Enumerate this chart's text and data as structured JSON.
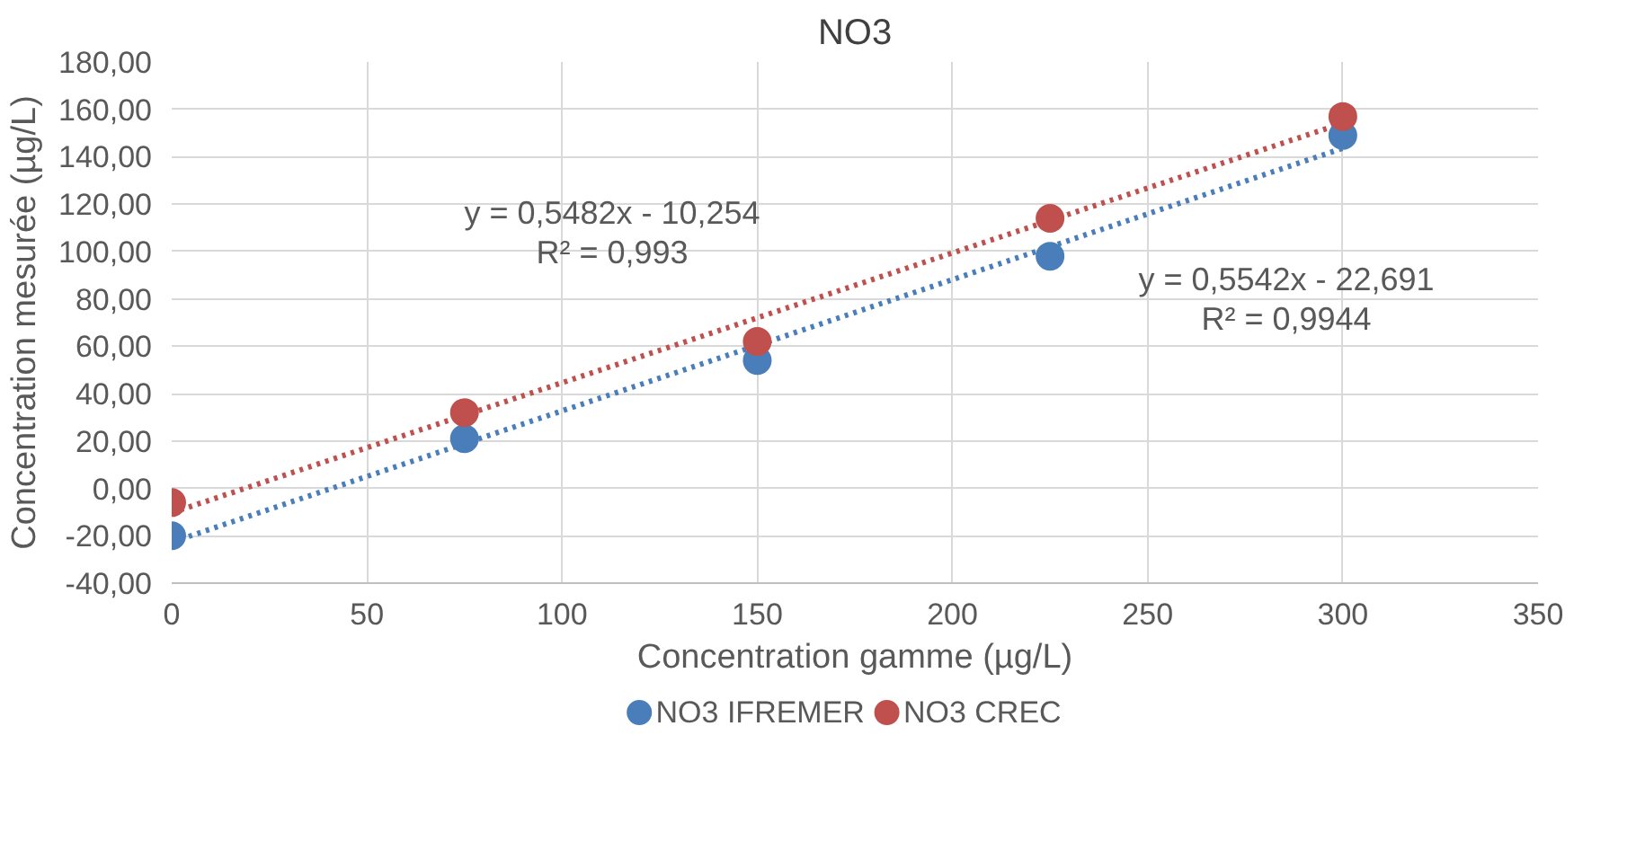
{
  "chart_data": {
    "type": "scatter",
    "title": "NO3",
    "xlabel": "Concentration gamme (µg/L)",
    "ylabel": "Concentration mesurée (µg/L)",
    "xlim": [
      0,
      350
    ],
    "xticks": [
      0,
      50,
      100,
      150,
      200,
      250,
      300,
      350
    ],
    "ylim": [
      -40,
      180
    ],
    "yticks": [
      {
        "value": -40,
        "label": "-40,00"
      },
      {
        "value": -20,
        "label": "-20,00"
      },
      {
        "value": 0,
        "label": "0,00"
      },
      {
        "value": 20,
        "label": "20,00"
      },
      {
        "value": 40,
        "label": "40,00"
      },
      {
        "value": 60,
        "label": "60,00"
      },
      {
        "value": 80,
        "label": "80,00"
      },
      {
        "value": 100,
        "label": "100,00"
      },
      {
        "value": 120,
        "label": "120,00"
      },
      {
        "value": 140,
        "label": "140,00"
      },
      {
        "value": 160,
        "label": "160,00"
      },
      {
        "value": 180,
        "label": "180,00"
      }
    ],
    "x": [
      0,
      75,
      150,
      225,
      300
    ],
    "grid": true,
    "legend": "bottom",
    "marker": "circle",
    "series": [
      {
        "name": "NO3 IFREMER",
        "color": "#4a7ebb",
        "values": [
          -20,
          21,
          54,
          98,
          149
        ]
      },
      {
        "name": "NO3 CREC",
        "color": "#c0504d",
        "values": [
          -6,
          32,
          62,
          114,
          157
        ]
      },
      {
        "type": "line",
        "line_style": "dotted",
        "marker": "none",
        "color": "#4a7ebb",
        "values": [
          -22.7,
          18.9,
          60.4,
          102.0,
          143.6
        ]
      },
      {
        "type": "line",
        "line_style": "dotted",
        "marker": "none",
        "color": "#c0504d",
        "values": [
          -10.3,
          30.9,
          72.0,
          113.1,
          154.2
        ]
      }
    ],
    "annotations": [
      "y = 0,5482x - 10,254\nR² = 0,993",
      "y = 0,5542x - 22,691\nR² = 0,9944"
    ]
  }
}
